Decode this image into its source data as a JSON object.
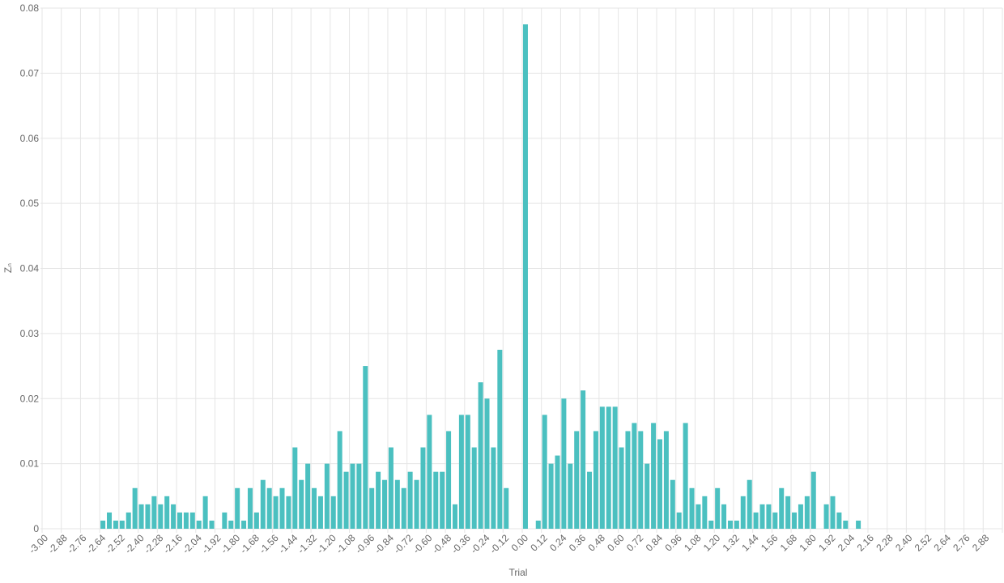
{
  "chart_data": {
    "type": "bar",
    "x_label": "Trial",
    "y_label": "Zₙ",
    "color": "#4bc0c0",
    "grid": true,
    "ylim": [
      0,
      0.08
    ],
    "yticks": [
      0,
      0.01,
      0.02,
      0.03,
      0.04,
      0.05,
      0.06,
      0.07,
      0.08
    ],
    "categories": [
      "-3.00",
      null,
      null,
      "-2.88",
      null,
      null,
      "-2.76",
      null,
      null,
      "-2.64",
      null,
      null,
      "-2.52",
      null,
      null,
      "-2.40",
      null,
      null,
      "-2.28",
      null,
      null,
      "-2.16",
      null,
      null,
      "-2.04",
      null,
      null,
      "-1.92",
      null,
      null,
      "-1.80",
      null,
      null,
      "-1.68",
      null,
      null,
      "-1.56",
      null,
      null,
      "-1.44",
      null,
      null,
      "-1.32",
      null,
      null,
      "-1.20",
      null,
      null,
      "-1.08",
      null,
      null,
      "-0.96",
      null,
      null,
      "-0.84",
      null,
      null,
      "-0.72",
      null,
      null,
      "-0.60",
      null,
      null,
      "-0.48",
      null,
      null,
      "-0.36",
      null,
      null,
      "-0.24",
      null,
      null,
      "-0.12",
      null,
      null,
      "0.00",
      null,
      null,
      "0.12",
      null,
      null,
      "0.24",
      null,
      null,
      "0.36",
      null,
      null,
      "0.48",
      null,
      null,
      "0.60",
      null,
      null,
      "0.72",
      null,
      null,
      "0.84",
      null,
      null,
      "0.96",
      null,
      null,
      "1.08",
      null,
      null,
      "1.20",
      null,
      null,
      "1.32",
      null,
      null,
      "1.44",
      null,
      null,
      "1.56",
      null,
      null,
      "1.68",
      null,
      null,
      "1.80",
      null,
      null,
      "1.92",
      null,
      null,
      "2.04",
      null,
      null,
      "2.16",
      null,
      null,
      "2.28",
      null,
      null,
      "2.40",
      null,
      null,
      "2.52",
      null,
      null,
      "2.64",
      null,
      null,
      "2.76",
      null,
      null,
      "2.88",
      null,
      null
    ],
    "values": [
      0,
      0,
      0,
      0,
      0,
      0,
      0,
      0,
      0,
      0.00125,
      0.0025,
      0.00125,
      0.00125,
      0.0025,
      0.00625,
      0.00375,
      0.00375,
      0.005,
      0.00375,
      0.005,
      0.00375,
      0.0025,
      0.0025,
      0.0025,
      0.00125,
      0.005,
      0.00125,
      0,
      0.0025,
      0.00125,
      0.00625,
      0.00125,
      0.00625,
      0.0025,
      0.0075,
      0.00625,
      0.005,
      0.00625,
      0.005,
      0.0125,
      0.0075,
      0.01,
      0.00625,
      0.005,
      0.01,
      0.005,
      0.015,
      0.00875,
      0.01,
      0.01,
      0.025,
      0.00625,
      0.00875,
      0.0075,
      0.0125,
      0.0075,
      0.00625,
      0.00875,
      0.0075,
      0.0125,
      0.0175,
      0.00875,
      0.00875,
      0.015,
      0.00375,
      0.0175,
      0.0175,
      0.0125,
      0.0225,
      0.02,
      0.0125,
      0.0275,
      0.00625,
      0,
      0,
      0.0775,
      0,
      0.00125,
      0.0175,
      0.01,
      0.01125,
      0.02,
      0.01,
      0.015,
      0.02125,
      0.00875,
      0.015,
      0.01875,
      0.01875,
      0.01875,
      0.0125,
      0.015,
      0.01625,
      0.015,
      0.01,
      0.01625,
      0.01375,
      0.015,
      0.0075,
      0.0025,
      0.01625,
      0.00625,
      0.00375,
      0.005,
      0.00125,
      0.00625,
      0.00375,
      0.00125,
      0.00125,
      0.005,
      0.0075,
      0.0025,
      0.00375,
      0.00375,
      0.0025,
      0.00625,
      0.005,
      0.0025,
      0.00375,
      0.005,
      0.00875,
      0,
      0.00375,
      0.005,
      0.0025,
      0.00125,
      0,
      0.00125,
      0,
      0,
      0,
      0,
      0,
      0,
      0,
      0,
      0,
      0,
      0,
      0,
      0,
      0,
      0,
      0,
      0,
      0,
      0,
      0,
      0,
      0
    ]
  }
}
